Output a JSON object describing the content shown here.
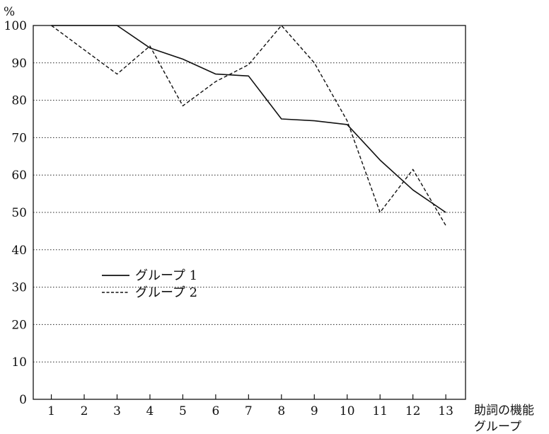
{
  "chart_data": {
    "type": "line",
    "title": "",
    "ylabel": "%",
    "xlabel": [
      "助詞の機能",
      "グループ"
    ],
    "x": [
      1,
      2,
      3,
      4,
      5,
      6,
      7,
      8,
      9,
      10,
      11,
      12,
      13
    ],
    "xticks": [
      "1",
      "2",
      "3",
      "4",
      "5",
      "6",
      "7",
      "8",
      "9",
      "10",
      "11",
      "12",
      "13"
    ],
    "yticks": [
      "0",
      "10",
      "20",
      "30",
      "40",
      "50",
      "60",
      "70",
      "80",
      "90",
      "100"
    ],
    "ylim": [
      0,
      100
    ],
    "grid": "horizontal-dotted",
    "legend_position": "center-left",
    "series": [
      {
        "name": "グループ 1",
        "style": "solid",
        "color": "#111111",
        "values": [
          100,
          100,
          100,
          94,
          91,
          87,
          86.5,
          75,
          74.5,
          73.5,
          64,
          56,
          50
        ]
      },
      {
        "name": "グループ 2",
        "style": "dashed",
        "color": "#111111",
        "values": [
          100,
          93.5,
          87,
          94.5,
          78.5,
          85,
          89.5,
          100,
          90,
          74.5,
          50,
          61.5,
          46.5
        ]
      }
    ]
  }
}
